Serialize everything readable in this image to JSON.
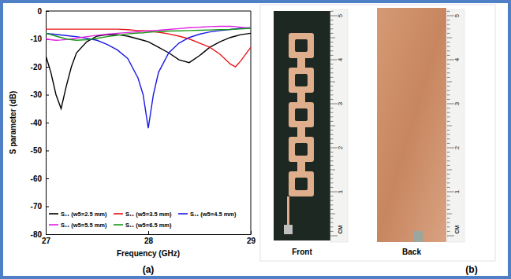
{
  "chart_data": {
    "type": "line",
    "title": "(a)",
    "x_label": "Frequency (GHz)",
    "y_label": "S parameter (dB)",
    "x": [
      27,
      27.05,
      27.1,
      27.15,
      27.2,
      27.25,
      27.3,
      27.4,
      27.5,
      27.6,
      27.7,
      27.8,
      27.9,
      27.95,
      28,
      28.05,
      28.1,
      28.2,
      28.3,
      28.4,
      28.5,
      28.6,
      28.7,
      28.8,
      28.85,
      28.9,
      29
    ],
    "series": [
      {
        "name": "S₁₁ (w5=2.5 mm)",
        "color": "#000000",
        "values": [
          -16,
          -22,
          -30,
          -35,
          -27,
          -20,
          -15,
          -11,
          -9,
          -8.5,
          -8.5,
          -9,
          -10,
          -10.5,
          -11,
          -12,
          -13,
          -15,
          -17.5,
          -18.5,
          -16,
          -13,
          -11,
          -9.5,
          -9,
          -8.5,
          -8
        ]
      },
      {
        "name": "S₁₁ (w5=3.5 mm)",
        "color": "#e8141a",
        "values": [
          -6.5,
          -6.5,
          -6.5,
          -6.5,
          -6.5,
          -6.5,
          -6.5,
          -6.5,
          -6.5,
          -6.5,
          -6.5,
          -6.7,
          -7,
          -7,
          -7.2,
          -7.4,
          -7.6,
          -8.2,
          -9,
          -10,
          -11.5,
          -13,
          -15.5,
          -19,
          -20,
          -18,
          -13
        ]
      },
      {
        "name": "S₁₁ (w5=4.5 mm)",
        "color": "#1a1ae6",
        "values": [
          -8,
          -8.2,
          -8.4,
          -8.6,
          -8.8,
          -9,
          -9.2,
          -9.8,
          -10.5,
          -12,
          -14,
          -17,
          -24,
          -30,
          -42,
          -30,
          -22,
          -15,
          -11.5,
          -9.5,
          -8.3,
          -7.5,
          -7,
          -6.6,
          -6.4,
          -6.2,
          -6
        ]
      },
      {
        "name": "S₁₁ (w5=5.5 mm)",
        "color": "#e020e0",
        "values": [
          -10,
          -10.3,
          -10.5,
          -10.4,
          -10.2,
          -10,
          -9.7,
          -9.2,
          -8.7,
          -8.3,
          -8,
          -7.7,
          -7.4,
          -7.3,
          -7.1,
          -7,
          -6.9,
          -6.6,
          -6.3,
          -6,
          -5.8,
          -5.6,
          -5.5,
          -5.5,
          -5.6,
          -5.8,
          -6.2
        ]
      },
      {
        "name": "S₁₁ (w5=6.5 mm)",
        "color": "#1a9a1a",
        "values": [
          -8,
          -8.5,
          -9,
          -9.5,
          -10,
          -10.3,
          -10.5,
          -10.3,
          -9.8,
          -9.2,
          -8.7,
          -8.2,
          -7.9,
          -7.8,
          -7.6,
          -7.5,
          -7.4,
          -7.2,
          -7.1,
          -7,
          -6.9,
          -6.8,
          -6.7,
          -6.6,
          -6.5,
          -6.4,
          -6.2
        ]
      }
    ],
    "xlim": [
      27,
      29
    ],
    "ylim": [
      -80,
      0
    ],
    "xticks": [
      27,
      28,
      29
    ],
    "yticks": [
      -80,
      -70,
      -60,
      -50,
      -40,
      -30,
      -20,
      -10,
      0
    ],
    "grid": false,
    "legend": "bottom"
  },
  "photo": {
    "title": "(b)",
    "panels": [
      {
        "label": "Front"
      },
      {
        "label": "Back"
      }
    ],
    "ruler": {
      "ticks": [
        1,
        2,
        3,
        4,
        5
      ],
      "unit": "CM"
    }
  }
}
